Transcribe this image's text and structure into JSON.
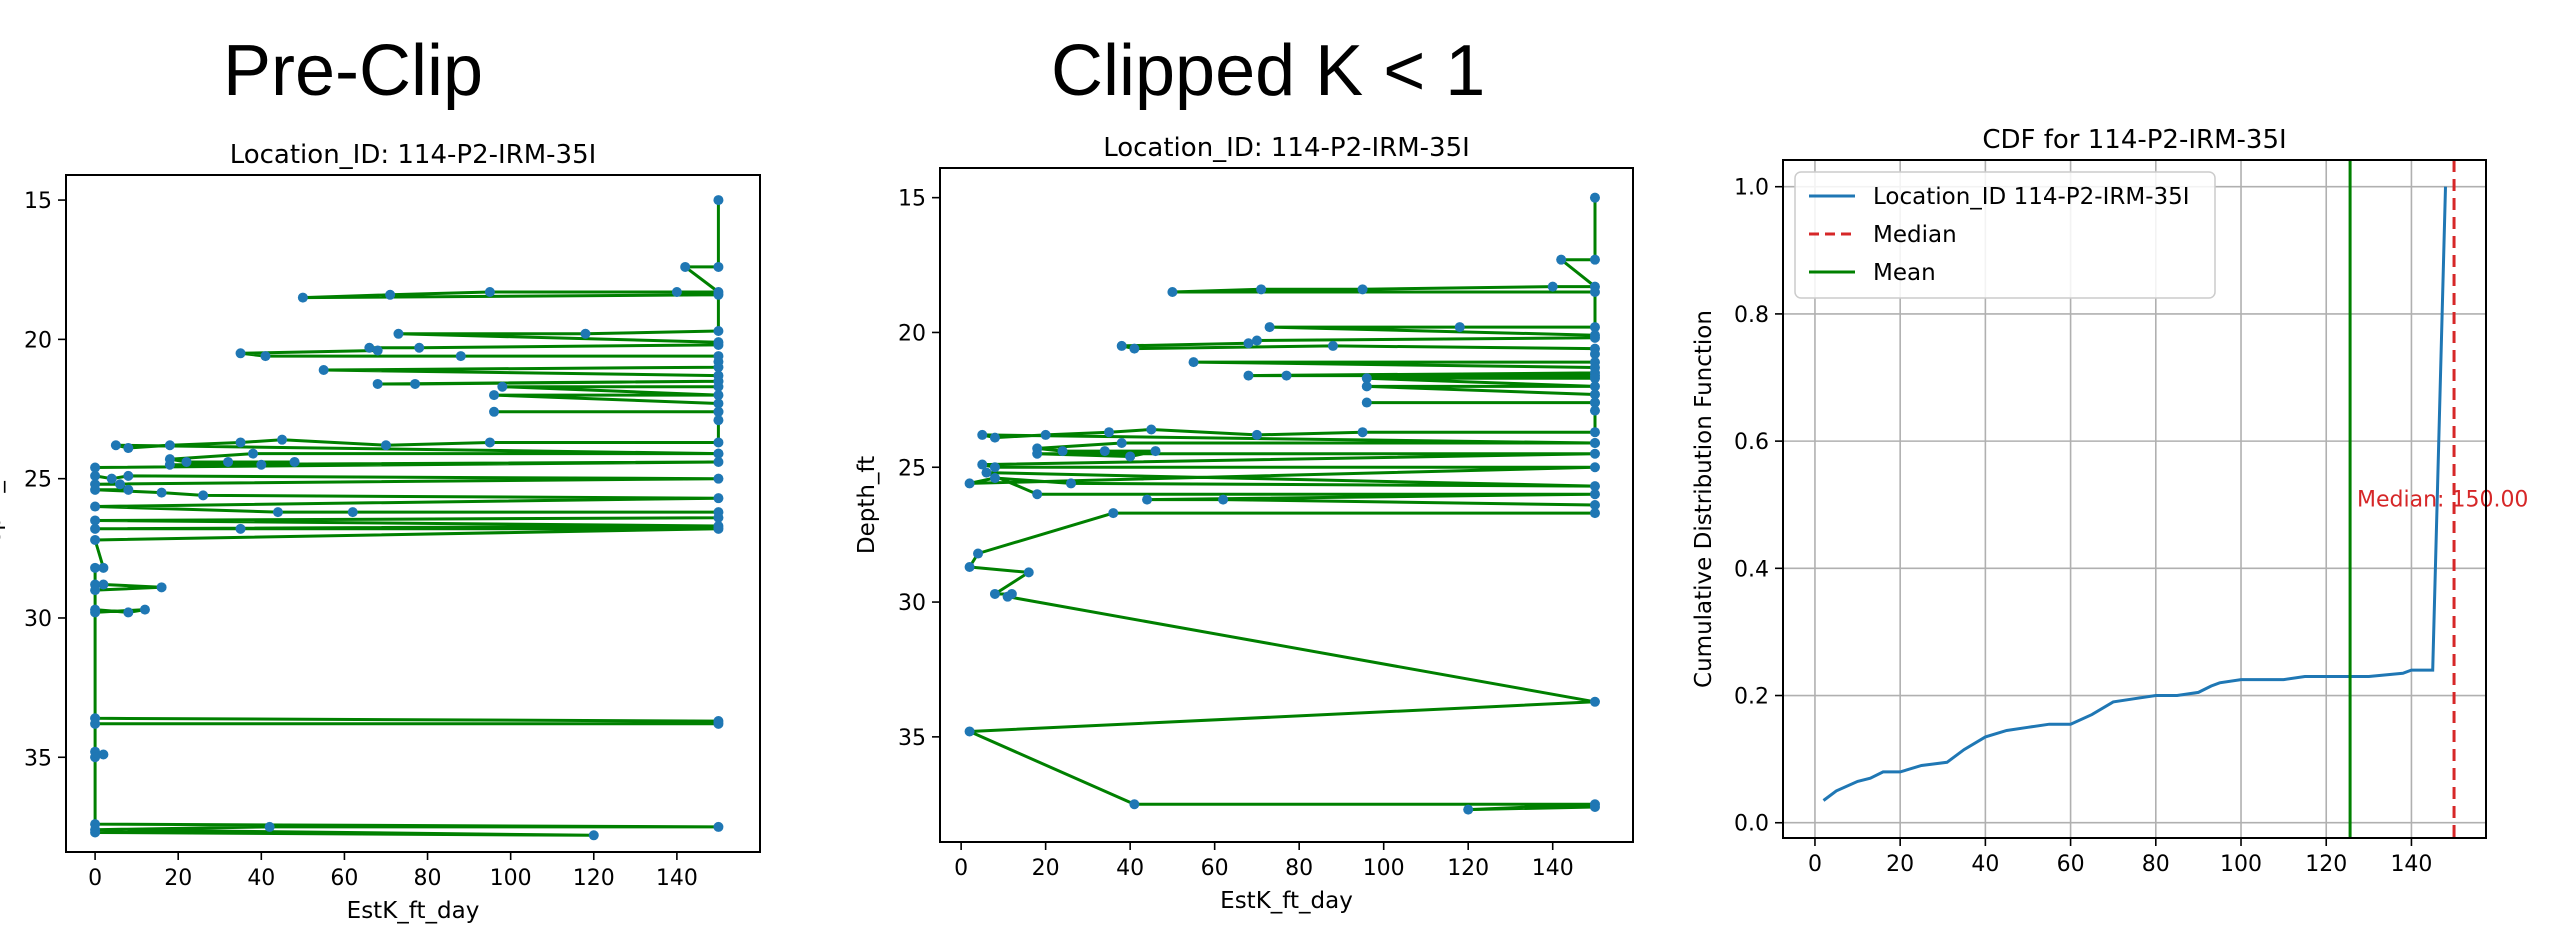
{
  "panels": {
    "left_heading": "Pre-Clip",
    "middle_heading": "Clipped K < 1"
  },
  "chart_data": [
    {
      "id": "preclip",
      "type": "line",
      "title": "Location_ID: 114-P2-IRM-35I",
      "xlabel": "EstK_ft_day",
      "ylabel": "Depth_ft",
      "xlim": [
        -7,
        160
      ],
      "ylim": [
        38.4,
        14.1
      ],
      "y_inverted": true,
      "xticks": [
        0,
        20,
        40,
        60,
        80,
        100,
        120,
        140
      ],
      "yticks": [
        15,
        20,
        25,
        30,
        35
      ],
      "line_color": "#008000",
      "marker_color": "#1f77b4",
      "points": [
        [
          150,
          15
        ],
        [
          150,
          17.4
        ],
        [
          142,
          17.4
        ],
        [
          150,
          18.3
        ],
        [
          140,
          18.3
        ],
        [
          95,
          18.3
        ],
        [
          71,
          18.4
        ],
        [
          50,
          18.5
        ],
        [
          150,
          18.4
        ],
        [
          150,
          19.7
        ],
        [
          118,
          19.8
        ],
        [
          73,
          19.8
        ],
        [
          150,
          20.1
        ],
        [
          150,
          20.2
        ],
        [
          78,
          20.3
        ],
        [
          66,
          20.3
        ],
        [
          68,
          20.4
        ],
        [
          35,
          20.5
        ],
        [
          41,
          20.6
        ],
        [
          88,
          20.6
        ],
        [
          150,
          20.6
        ],
        [
          150,
          20.8
        ],
        [
          150,
          21
        ],
        [
          55,
          21.1
        ],
        [
          150,
          21.3
        ],
        [
          150,
          21.5
        ],
        [
          68,
          21.6
        ],
        [
          77,
          21.6
        ],
        [
          150,
          21.5
        ],
        [
          150,
          21.7
        ],
        [
          98,
          21.7
        ],
        [
          150,
          22
        ],
        [
          96,
          22
        ],
        [
          150,
          22.3
        ],
        [
          150,
          22.6
        ],
        [
          96,
          22.6
        ],
        [
          150,
          22.6
        ],
        [
          150,
          22.9
        ],
        [
          150,
          23.7
        ],
        [
          95,
          23.7
        ],
        [
          70,
          23.8
        ],
        [
          45,
          23.6
        ],
        [
          35,
          23.7
        ],
        [
          18,
          23.8
        ],
        [
          8,
          23.9
        ],
        [
          5,
          23.8
        ],
        [
          150,
          24.1
        ],
        [
          150,
          24.1
        ],
        [
          38,
          24.1
        ],
        [
          18,
          24.3
        ],
        [
          22,
          24.4
        ],
        [
          32,
          24.4
        ],
        [
          48,
          24.4
        ],
        [
          40,
          24.5
        ],
        [
          18,
          24.5
        ],
        [
          150,
          24.4
        ],
        [
          0,
          24.6
        ],
        [
          0,
          24.9
        ],
        [
          4,
          25
        ],
        [
          8,
          24.9
        ],
        [
          150,
          25.0
        ],
        [
          0,
          25.2
        ],
        [
          6,
          25.2
        ],
        [
          8,
          25.4
        ],
        [
          0,
          25.4
        ],
        [
          16,
          25.5
        ],
        [
          26,
          25.6
        ],
        [
          150,
          25.7
        ],
        [
          0,
          26
        ],
        [
          44,
          26.2
        ],
        [
          62,
          26.2
        ],
        [
          150,
          26.2
        ],
        [
          150,
          26.4
        ],
        [
          0,
          26.5
        ],
        [
          150,
          26.7
        ],
        [
          0,
          26.8
        ],
        [
          35,
          26.8
        ],
        [
          150,
          26.8
        ],
        [
          0,
          27.2
        ],
        [
          2,
          28.2
        ],
        [
          0,
          28.2
        ],
        [
          0,
          28.8
        ],
        [
          2,
          28.8
        ],
        [
          16,
          28.9
        ],
        [
          0,
          29
        ],
        [
          0,
          29.7
        ],
        [
          8,
          29.8
        ],
        [
          12,
          29.7
        ],
        [
          0,
          29.8
        ],
        [
          0,
          33.6
        ],
        [
          150,
          33.7
        ],
        [
          150,
          33.8
        ],
        [
          0,
          33.8
        ],
        [
          0,
          34.8
        ],
        [
          2,
          34.9
        ],
        [
          0,
          35
        ],
        [
          0,
          37.4
        ],
        [
          150,
          37.5
        ],
        [
          42,
          37.5
        ],
        [
          0,
          37.6
        ],
        [
          120,
          37.8
        ],
        [
          0,
          37.7
        ]
      ]
    },
    {
      "id": "clipped",
      "type": "line",
      "title": "Location_ID: 114-P2-IRM-35I",
      "xlabel": "EstK_ft_day",
      "ylabel": "Depth_ft",
      "xlim": [
        -5,
        159
      ],
      "ylim": [
        38.9,
        13.9
      ],
      "y_inverted": true,
      "xticks": [
        0,
        20,
        40,
        60,
        80,
        100,
        120,
        140
      ],
      "yticks": [
        15,
        20,
        25,
        30,
        35
      ],
      "line_color": "#008000",
      "marker_color": "#1f77b4",
      "points": [
        [
          150,
          15
        ],
        [
          150,
          17.3
        ],
        [
          142,
          17.3
        ],
        [
          150,
          18.3
        ],
        [
          140,
          18.3
        ],
        [
          95,
          18.4
        ],
        [
          71,
          18.4
        ],
        [
          50,
          18.5
        ],
        [
          150,
          18.5
        ],
        [
          150,
          19.8
        ],
        [
          118,
          19.8
        ],
        [
          73,
          19.8
        ],
        [
          150,
          20.1
        ],
        [
          150,
          20.2
        ],
        [
          70,
          20.3
        ],
        [
          68,
          20.4
        ],
        [
          38,
          20.5
        ],
        [
          41,
          20.6
        ],
        [
          88,
          20.5
        ],
        [
          150,
          20.6
        ],
        [
          150,
          20.8
        ],
        [
          150,
          21.1
        ],
        [
          55,
          21.1
        ],
        [
          150,
          21.3
        ],
        [
          150,
          21.5
        ],
        [
          68,
          21.6
        ],
        [
          77,
          21.6
        ],
        [
          150,
          21.6
        ],
        [
          150,
          21.7
        ],
        [
          96,
          21.7
        ],
        [
          150,
          22
        ],
        [
          96,
          22
        ],
        [
          150,
          22.3
        ],
        [
          150,
          22.6
        ],
        [
          96,
          22.6
        ],
        [
          150,
          22.6
        ],
        [
          150,
          22.9
        ],
        [
          150,
          23.7
        ],
        [
          95,
          23.7
        ],
        [
          70,
          23.8
        ],
        [
          45,
          23.6
        ],
        [
          35,
          23.7
        ],
        [
          20,
          23.8
        ],
        [
          8,
          23.9
        ],
        [
          5,
          23.8
        ],
        [
          150,
          24.1
        ],
        [
          150,
          24.1
        ],
        [
          38,
          24.1
        ],
        [
          18,
          24.3
        ],
        [
          24,
          24.4
        ],
        [
          34,
          24.4
        ],
        [
          46,
          24.4
        ],
        [
          40,
          24.6
        ],
        [
          18,
          24.5
        ],
        [
          150,
          24.5
        ],
        [
          5,
          24.9
        ],
        [
          8,
          25.0
        ],
        [
          150,
          25.0
        ],
        [
          2,
          25.6
        ],
        [
          8,
          25.4
        ],
        [
          26,
          25.6
        ],
        [
          150,
          25.7
        ],
        [
          6,
          25.2
        ],
        [
          18,
          26.0
        ],
        [
          150,
          26.0
        ],
        [
          44,
          26.2
        ],
        [
          62,
          26.2
        ],
        [
          150,
          26.4
        ],
        [
          150,
          26.7
        ],
        [
          36,
          26.7
        ],
        [
          4,
          28.2
        ],
        [
          2,
          28.7
        ],
        [
          16,
          28.9
        ],
        [
          8,
          29.7
        ],
        [
          12,
          29.7
        ],
        [
          11,
          29.8
        ],
        [
          150,
          33.7
        ],
        [
          2,
          34.8
        ],
        [
          41,
          37.5
        ],
        [
          150,
          37.5
        ],
        [
          120,
          37.7
        ],
        [
          150,
          37.6
        ]
      ]
    },
    {
      "id": "cdf",
      "type": "line",
      "title": "CDF for 114-P2-IRM-35I",
      "xlabel": "",
      "ylabel": "Cumulative Distribution Function",
      "xlim": [
        -7.5,
        157.5
      ],
      "ylim": [
        -0.024,
        1.042
      ],
      "xticks": [
        0,
        20,
        40,
        60,
        80,
        100,
        120,
        140
      ],
      "yticks": [
        0.0,
        0.2,
        0.4,
        0.6,
        0.8,
        1.0
      ],
      "grid": true,
      "legend_position": "upper-left",
      "series": [
        {
          "name": "Location_ID 114-P2-IRM-35I",
          "color": "#1f77b4",
          "x": [
            2,
            5,
            10,
            13,
            16,
            20,
            25,
            31,
            35,
            40,
            45,
            50,
            55,
            60,
            65,
            70,
            75,
            80,
            85,
            90,
            93,
            95,
            100,
            105,
            110,
            115,
            118,
            125,
            130,
            138,
            140,
            145,
            148
          ],
          "y": [
            0.035,
            0.05,
            0.065,
            0.07,
            0.08,
            0.08,
            0.09,
            0.095,
            0.115,
            0.135,
            0.145,
            0.15,
            0.155,
            0.155,
            0.17,
            0.19,
            0.195,
            0.2,
            0.2,
            0.205,
            0.215,
            0.22,
            0.225,
            0.225,
            0.225,
            0.23,
            0.23,
            0.23,
            0.23,
            0.235,
            0.24,
            0.24,
            1.0
          ]
        }
      ],
      "median": {
        "label": "Median",
        "value": 150.0,
        "annotation": "Median: 150.00",
        "color": "#d62728"
      },
      "mean": {
        "label": "Mean",
        "value": 125.6,
        "color": "#008000"
      }
    }
  ]
}
